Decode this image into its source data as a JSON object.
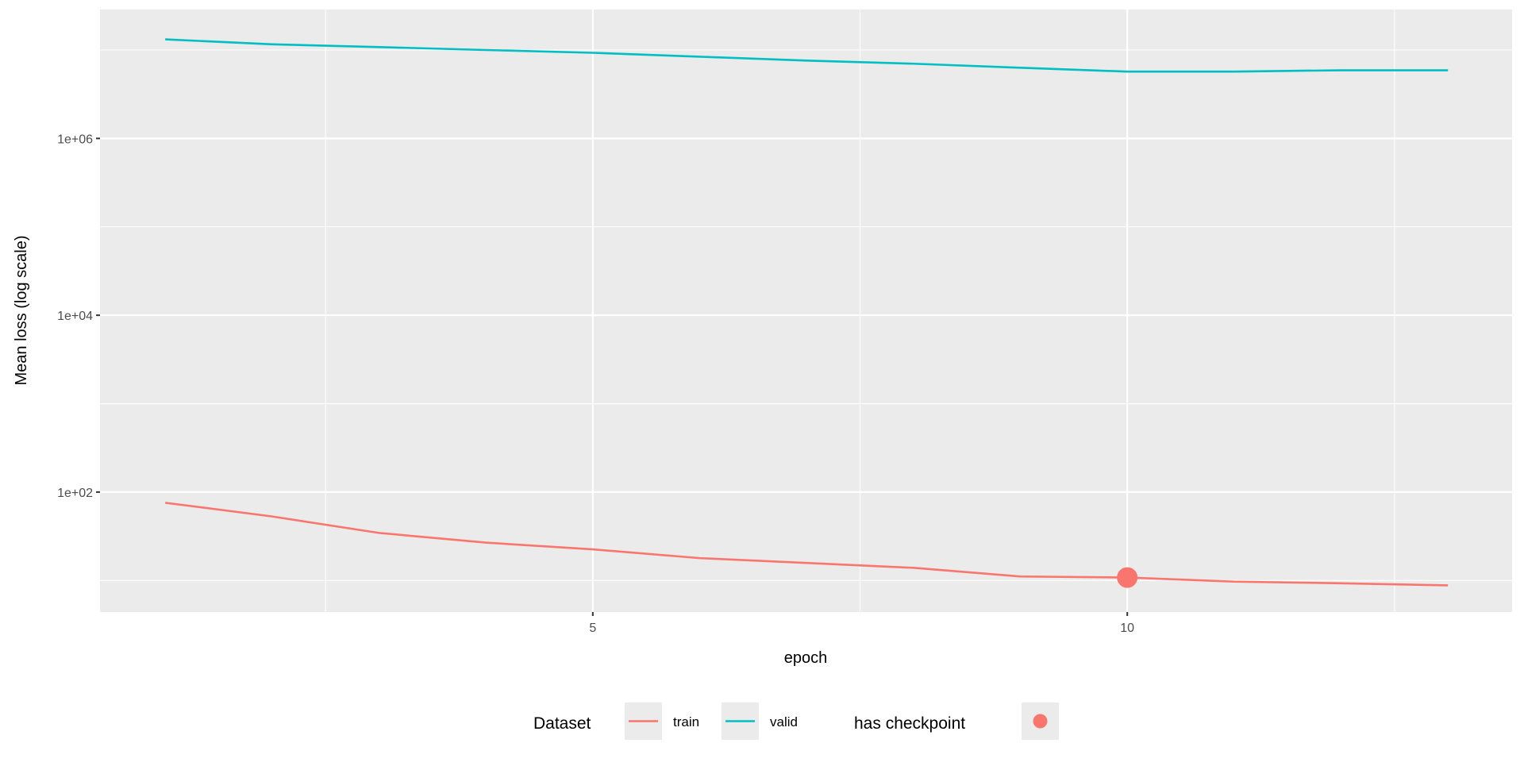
{
  "chart_data": {
    "type": "line",
    "title": "",
    "xlabel": "epoch",
    "ylabel": "Mean loss (log scale)",
    "yscale": "log10",
    "x": [
      1,
      2,
      3,
      4,
      5,
      6,
      7,
      8,
      9,
      10,
      11,
      12,
      13
    ],
    "xlim": [
      0.39,
      13.6
    ],
    "ylim": [
      4.4,
      28700000
    ],
    "x_ticks": [
      5,
      10
    ],
    "x_tick_labels": [
      "5",
      "10"
    ],
    "x_minor_ticks": [
      2.5,
      7.5,
      12.5
    ],
    "y_ticks": [
      100,
      10000,
      1000000
    ],
    "y_tick_labels": [
      "1e+02",
      "1e+04",
      "1e+06"
    ],
    "y_minor_ticks": [
      10,
      1000,
      100000,
      10000000
    ],
    "grid": true,
    "series": [
      {
        "name": "train",
        "color": "#F8766D",
        "values": [
          75.7,
          53,
          34.5,
          26.8,
          22.5,
          17.9,
          15.8,
          13.9,
          11.1,
          10.8,
          9.7,
          9.3,
          8.8
        ]
      },
      {
        "name": "valid",
        "color": "#00BFC4",
        "values": [
          13200000,
          11600000,
          10800000,
          10000000,
          9300000,
          8400000,
          7600000,
          7000000,
          6300000,
          5700000,
          5700000,
          5900000,
          5900000
        ]
      }
    ],
    "checkpoints": [
      {
        "series": "train",
        "x": 10,
        "y": 10.8
      }
    ],
    "legend": {
      "placement": "bottom",
      "dataset_title": "Dataset",
      "dataset_items": [
        "train",
        "valid"
      ],
      "checkpoint_title": "has checkpoint"
    }
  }
}
